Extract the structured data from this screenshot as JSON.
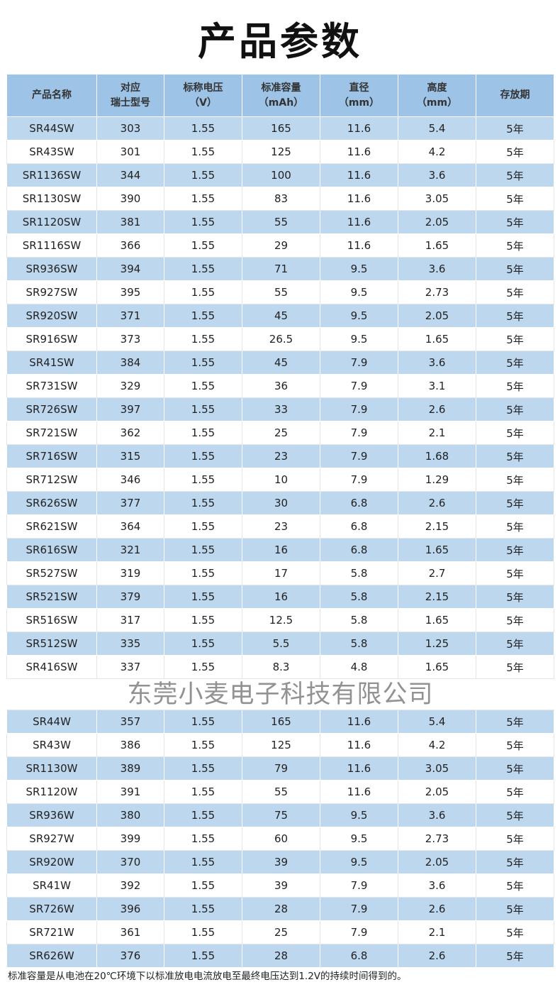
{
  "title": "产品参数",
  "header": [
    "产品名称",
    "对应\n瑞士型号",
    "标称电压\n（V）",
    "标准容量\n（mAh）",
    "直径\n（mm）",
    "高度\n（mm）",
    "存放期"
  ],
  "group1": [
    [
      "SR44SW",
      "303",
      "1.55",
      "165",
      "11.6",
      "5.4",
      "5年"
    ],
    [
      "SR43SW",
      "301",
      "1.55",
      "125",
      "11.6",
      "4.2",
      "5年"
    ],
    [
      "SR1136SW",
      "344",
      "1.55",
      "100",
      "11.6",
      "3.6",
      "5年"
    ],
    [
      "SR1130SW",
      "390",
      "1.55",
      "83",
      "11.6",
      "3.05",
      "5年"
    ],
    [
      "SR1120SW",
      "381",
      "1.55",
      "55",
      "11.6",
      "2.05",
      "5年"
    ],
    [
      "SR1116SW",
      "366",
      "1.55",
      "29",
      "11.6",
      "1.65",
      "5年"
    ],
    [
      "SR936SW",
      "394",
      "1.55",
      "71",
      "9.5",
      "3.6",
      "5年"
    ],
    [
      "SR927SW",
      "395",
      "1.55",
      "55",
      "9.5",
      "2.73",
      "5年"
    ],
    [
      "SR920SW",
      "371",
      "1.55",
      "45",
      "9.5",
      "2.05",
      "5年"
    ],
    [
      "SR916SW",
      "373",
      "1.55",
      "26.5",
      "9.5",
      "1.65",
      "5年"
    ],
    [
      "SR41SW",
      "384",
      "1.55",
      "45",
      "7.9",
      "3.6",
      "5年"
    ],
    [
      "SR731SW",
      "329",
      "1.55",
      "36",
      "7.9",
      "3.1",
      "5年"
    ],
    [
      "SR726SW",
      "397",
      "1.55",
      "33",
      "7.9",
      "2.6",
      "5年"
    ],
    [
      "SR721SW",
      "362",
      "1.55",
      "25",
      "7.9",
      "2.1",
      "5年"
    ],
    [
      "SR716SW",
      "315",
      "1.55",
      "23",
      "7.9",
      "1.68",
      "5年"
    ],
    [
      "SR712SW",
      "346",
      "1.55",
      "10",
      "7.9",
      "1.29",
      "5年"
    ],
    [
      "SR626SW",
      "377",
      "1.55",
      "30",
      "6.8",
      "2.6",
      "5年"
    ],
    [
      "SR621SW",
      "364",
      "1.55",
      "23",
      "6.8",
      "2.15",
      "5年"
    ],
    [
      "SR616SW",
      "321",
      "1.55",
      "16",
      "6.8",
      "1.65",
      "5年"
    ],
    [
      "SR527SW",
      "319",
      "1.55",
      "17",
      "5.8",
      "2.7",
      "5年"
    ],
    [
      "SR521SW",
      "379",
      "1.55",
      "16",
      "5.8",
      "2.15",
      "5年"
    ],
    [
      "SR516SW",
      "317",
      "1.55",
      "12.5",
      "5.8",
      "1.65",
      "5年"
    ],
    [
      "SR512SW",
      "335",
      "1.55",
      "5.5",
      "5.8",
      "1.25",
      "5年"
    ],
    [
      "SR416SW",
      "337",
      "1.55",
      "8.3",
      "4.8",
      "1.65",
      "5年"
    ]
  ],
  "group2": [
    [
      "SR44W",
      "357",
      "1.55",
      "165",
      "11.6",
      "5.4",
      "5年"
    ],
    [
      "SR43W",
      "386",
      "1.55",
      "125",
      "11.6",
      "4.2",
      "5年"
    ],
    [
      "SR1130W",
      "389",
      "1.55",
      "79",
      "11.6",
      "3.05",
      "5年"
    ],
    [
      "SR1120W",
      "391",
      "1.55",
      "55",
      "11.6",
      "2.05",
      "5年"
    ],
    [
      "SR936W",
      "380",
      "1.55",
      "75",
      "9.5",
      "3.6",
      "5年"
    ],
    [
      "SR927W",
      "399",
      "1.55",
      "60",
      "9.5",
      "2.73",
      "5年"
    ],
    [
      "SR920W",
      "370",
      "1.55",
      "39",
      "9.5",
      "2.05",
      "5年"
    ],
    [
      "SR41W",
      "392",
      "1.55",
      "39",
      "7.9",
      "3.6",
      "5年"
    ],
    [
      "SR726W",
      "396",
      "1.55",
      "28",
      "7.9",
      "2.6",
      "5年"
    ],
    [
      "SR721W",
      "361",
      "1.55",
      "25",
      "7.9",
      "2.1",
      "5年"
    ],
    [
      "SR626W",
      "376",
      "1.55",
      "28",
      "6.8",
      "2.6",
      "5年"
    ]
  ],
  "watermark": "东莞小麦电子科技有限公司",
  "note": "标准容量是从电池在20℃环境下以标准放电电流放电至最终电压达到1.2V的持续时间得到的。",
  "colors": {
    "header_bg": "#9dc3e6",
    "row_blue": "#bdd7ee",
    "row_white": "#ffffff"
  }
}
